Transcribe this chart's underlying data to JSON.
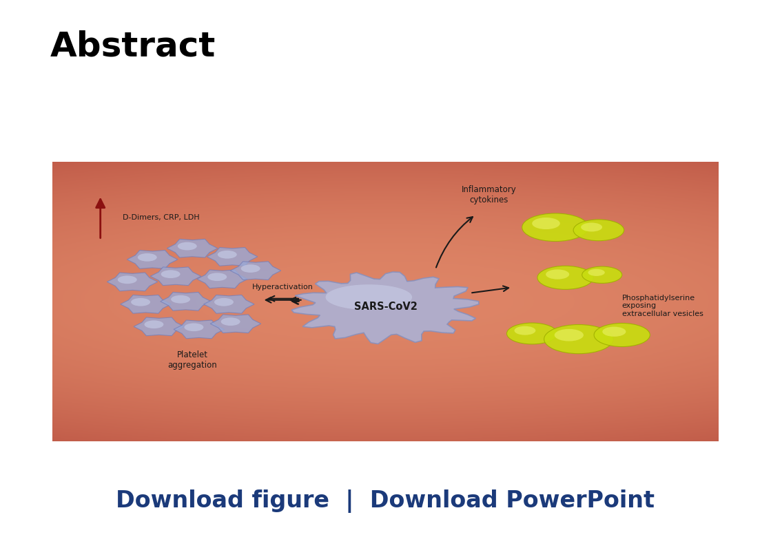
{
  "title": "Abstract",
  "title_fontsize": 36,
  "title_fontweight": "bold",
  "title_color": "#000000",
  "download_text_left": "Download figure",
  "download_sep": "  |  ",
  "download_text_right": "Download PowerPoint",
  "download_color": "#1b3a7a",
  "download_fontsize": 24,
  "bg_color": "#ffffff",
  "sars_label": "SARS-CoV2",
  "hyperactivation_label": "Hyperactivation",
  "platelet_agg_label": "Platelet\naggregation",
  "inflammatory_label": "Inflammatory\ncytokines",
  "phospha_label": "Phosphatidylserine\nexposing\nextracellular vesicles",
  "d_dimers_label": "D-Dimers, CRP, LDH",
  "d_dimers_arrow_color": "#8b1010",
  "arrow_color": "#1a1a1a",
  "label_color": "#1a1a1a",
  "platelet_face": "#9ba8d4",
  "platelet_edge": "#7880b8",
  "platelet_highlight": "#ccd4ee",
  "sars_face": "#aab2d8",
  "sars_edge": "#8890bc",
  "sars_highlight": "#d0d8f0",
  "vesicle_face": "#c8dc10",
  "vesicle_edge": "#a0b000",
  "vesicle_highlight": "#e8f060"
}
